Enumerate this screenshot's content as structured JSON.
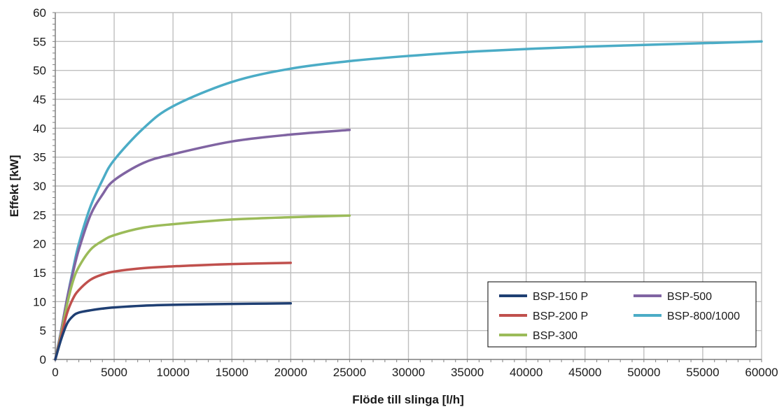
{
  "chart_data": {
    "type": "line",
    "xlabel": "Flöde till slinga [l/h]",
    "ylabel": "Effekt [kW]",
    "xlim": [
      0,
      60000
    ],
    "ylim": [
      0,
      60
    ],
    "x_ticks": [
      0,
      5000,
      10000,
      15000,
      20000,
      25000,
      30000,
      35000,
      40000,
      45000,
      50000,
      55000,
      60000
    ],
    "y_ticks": [
      0,
      5,
      10,
      15,
      20,
      25,
      30,
      35,
      40,
      45,
      50,
      55,
      60
    ],
    "x_tick_labels": [
      "0",
      "5000",
      "10000",
      "15000",
      "20000",
      "25000",
      "30000",
      "35000",
      "40000",
      "45000",
      "50000",
      "55000",
      "60000"
    ],
    "y_tick_labels": [
      "0",
      "5",
      "10",
      "15",
      "20",
      "25",
      "30",
      "35",
      "40",
      "45",
      "50",
      "55",
      "60"
    ],
    "grid": true,
    "legend_position": "bottom-right",
    "series": [
      {
        "name": "BSP-150 P",
        "color": "#1f3f73",
        "x": [
          0,
          500,
          1000,
          1500,
          2000,
          3000,
          4000,
          5000,
          7500,
          10000,
          15000,
          20000
        ],
        "y": [
          0,
          3.5,
          6.2,
          7.5,
          8.1,
          8.5,
          8.8,
          9.0,
          9.3,
          9.45,
          9.6,
          9.7
        ]
      },
      {
        "name": "BSP-200 P",
        "color": "#c0504d",
        "x": [
          0,
          500,
          1000,
          1500,
          2000,
          3000,
          4000,
          5000,
          7500,
          10000,
          15000,
          20000
        ],
        "y": [
          0,
          4.0,
          8.0,
          10.5,
          12.0,
          13.8,
          14.7,
          15.2,
          15.8,
          16.1,
          16.5,
          16.7
        ]
      },
      {
        "name": "BSP-300",
        "color": "#9bbb59",
        "x": [
          0,
          500,
          1000,
          1500,
          2000,
          3000,
          4000,
          5000,
          7500,
          10000,
          15000,
          20000,
          25000
        ],
        "y": [
          0,
          4.5,
          9.5,
          13.5,
          16.0,
          19.0,
          20.5,
          21.5,
          22.8,
          23.4,
          24.2,
          24.6,
          24.9
        ]
      },
      {
        "name": "BSP-500",
        "color": "#8064a2",
        "x": [
          0,
          500,
          1000,
          1500,
          2000,
          3000,
          4000,
          5000,
          7500,
          10000,
          15000,
          20000,
          25000
        ],
        "y": [
          0,
          5.0,
          10.5,
          15.0,
          19.0,
          25.0,
          28.5,
          31.0,
          34.0,
          35.5,
          37.7,
          38.9,
          39.7
        ]
      },
      {
        "name": "BSP-800/1000",
        "color": "#4bacc6",
        "x": [
          0,
          500,
          1000,
          1500,
          2000,
          3000,
          4000,
          5000,
          7500,
          10000,
          15000,
          20000,
          25000,
          30000,
          35000,
          40000,
          45000,
          50000,
          55000,
          60000
        ],
        "y": [
          0,
          5.0,
          10.5,
          15.5,
          20.0,
          26.5,
          31.0,
          34.5,
          40.0,
          43.8,
          48.0,
          50.3,
          51.6,
          52.5,
          53.2,
          53.7,
          54.1,
          54.4,
          54.7,
          55.0
        ]
      }
    ]
  }
}
